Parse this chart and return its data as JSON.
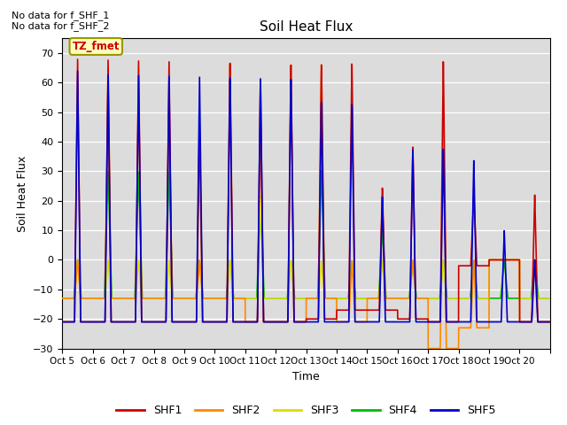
{
  "title": "Soil Heat Flux",
  "ylabel": "Soil Heat Flux",
  "xlabel": "Time",
  "ylim": [
    -30,
    75
  ],
  "background_color": "#dcdcdc",
  "annotations": [
    "No data for f_SHF_1",
    "No data for f_SHF_2"
  ],
  "legend_label": "TZ_fmet",
  "series_colors": {
    "SHF1": "#cc0000",
    "SHF2": "#ff8800",
    "SHF3": "#dddd00",
    "SHF4": "#00bb00",
    "SHF5": "#0000cc"
  },
  "x_tick_labels": [
    "Oct 5",
    "Oct 6",
    "Oct 7",
    "Oct 8",
    "Oct 9",
    "Oct 10",
    "Oct 11",
    "Oct 12",
    "Oct 13",
    "Oct 14",
    "Oct 15",
    "Oct 16",
    "Oct 17",
    "Oct 18",
    "Oct 19",
    "Oct 20"
  ],
  "num_days": 16,
  "yticks": [
    -30,
    -20,
    -10,
    0,
    10,
    20,
    30,
    40,
    50,
    60,
    70
  ]
}
